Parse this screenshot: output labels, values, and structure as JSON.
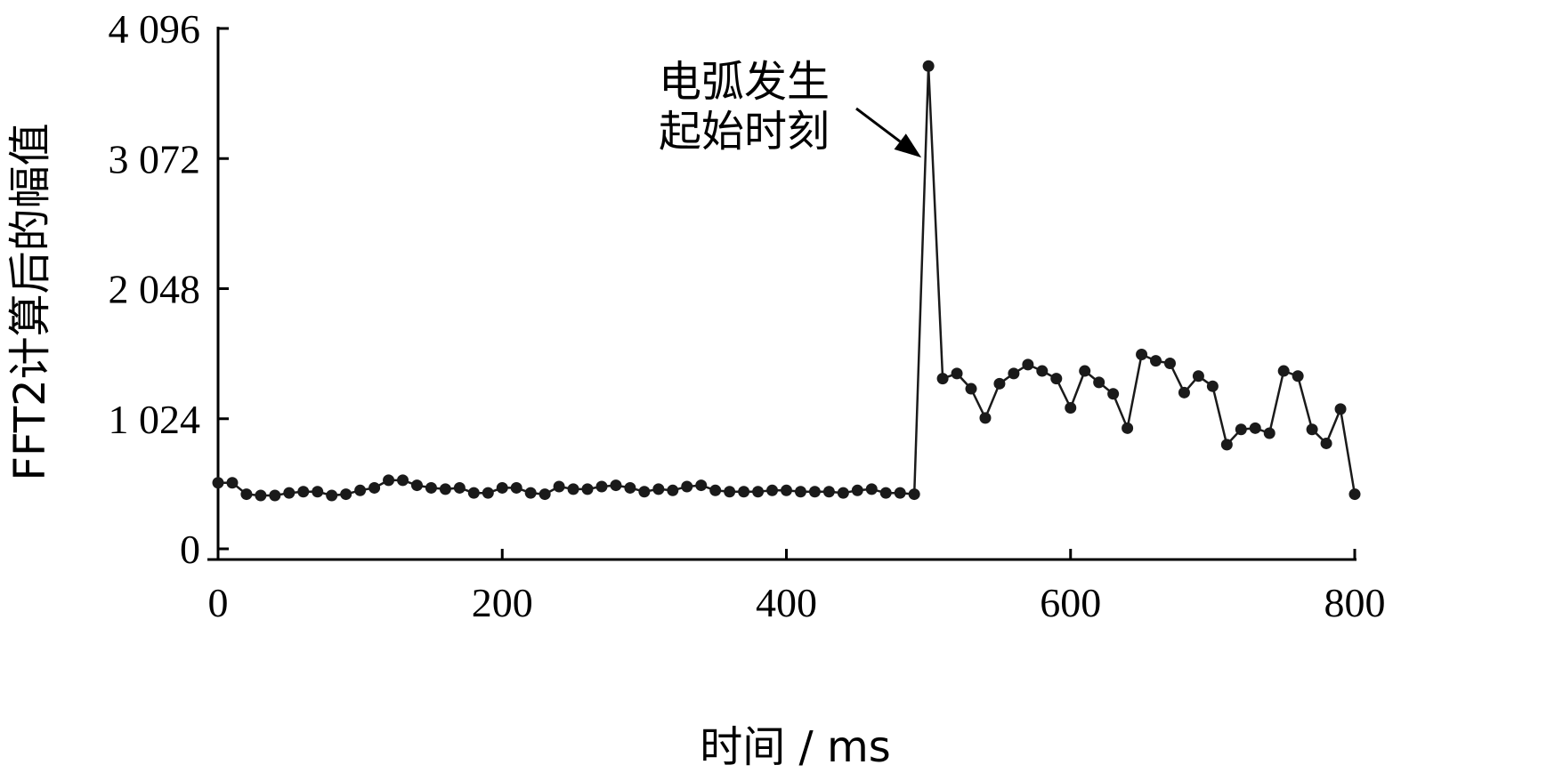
{
  "chart_data": {
    "type": "line",
    "xlabel": "时间 / ms",
    "ylabel": "FFT2计算后的幅值",
    "xlim": [
      0,
      800
    ],
    "ylim": [
      0,
      4096
    ],
    "xticks": [
      0,
      200,
      400,
      600,
      800
    ],
    "xtick_labels": [
      "0",
      "200",
      "400",
      "600",
      "800"
    ],
    "yticks": [
      0,
      1024,
      2048,
      3072,
      4096
    ],
    "ytick_labels": [
      "0",
      "1 024",
      "2 048",
      "3 072",
      "4 096"
    ],
    "grid": false,
    "legend": "none",
    "series": [
      {
        "color": "#1a1a1a",
        "marker": "circle",
        "x": [
          0,
          10,
          20,
          30,
          40,
          50,
          60,
          70,
          80,
          90,
          100,
          110,
          120,
          130,
          140,
          150,
          160,
          170,
          180,
          190,
          200,
          210,
          220,
          230,
          240,
          250,
          260,
          270,
          280,
          290,
          300,
          310,
          320,
          330,
          340,
          350,
          360,
          370,
          380,
          390,
          400,
          410,
          420,
          430,
          440,
          450,
          460,
          470,
          480,
          490,
          500,
          510,
          520,
          530,
          540,
          550,
          560,
          570,
          580,
          590,
          600,
          610,
          620,
          630,
          640,
          650,
          660,
          670,
          680,
          690,
          700,
          710,
          720,
          730,
          740,
          750,
          760,
          770,
          780,
          790,
          800
        ],
        "y": [
          520,
          520,
          430,
          420,
          420,
          440,
          450,
          450,
          420,
          430,
          460,
          480,
          540,
          540,
          500,
          480,
          470,
          480,
          440,
          440,
          480,
          480,
          440,
          430,
          490,
          470,
          470,
          490,
          500,
          480,
          450,
          470,
          460,
          490,
          500,
          460,
          450,
          450,
          450,
          460,
          460,
          450,
          450,
          450,
          440,
          460,
          470,
          440,
          440,
          430,
          3800,
          1340,
          1380,
          1260,
          1030,
          1300,
          1380,
          1450,
          1400,
          1340,
          1110,
          1400,
          1310,
          1220,
          950,
          1530,
          1480,
          1460,
          1230,
          1360,
          1280,
          820,
          940,
          950,
          910,
          1400,
          1360,
          940,
          830,
          1100,
          430
        ]
      }
    ],
    "annotations": [
      {
        "lines": [
          "电弧发生",
          "起始时刻"
        ],
        "points_to": {
          "x": 495,
          "y": 3080
        }
      }
    ]
  }
}
